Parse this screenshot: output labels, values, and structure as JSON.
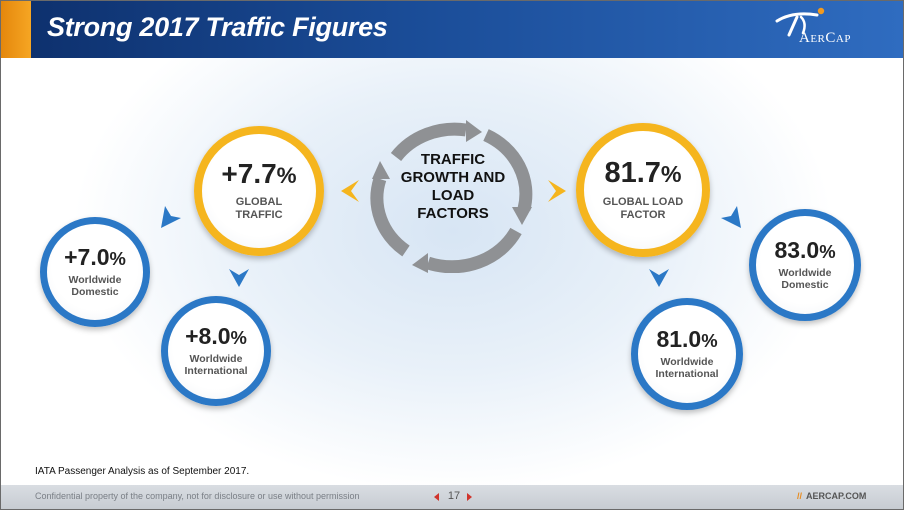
{
  "header": {
    "title": "Strong 2017 Traffic Figures",
    "logo_text": "AerCap",
    "brand_color": "#1a4c97",
    "accent_color": "#f6a623"
  },
  "center": {
    "icon": "cycle-arrows-icon",
    "label": "TRAFFIC GROWTH AND LOAD FACTORS"
  },
  "traffic": {
    "global": {
      "value": "+7.7",
      "unit": "%",
      "label": "GLOBAL TRAFFIC"
    },
    "domestic": {
      "value": "+7.0",
      "unit": "%",
      "label": "Worldwide Domestic"
    },
    "international": {
      "value": "+8.0",
      "unit": "%",
      "label": "Worldwide International"
    }
  },
  "load_factor": {
    "global": {
      "value": "81.7",
      "unit": "%",
      "label": "GLOBAL LOAD FACTOR"
    },
    "domestic": {
      "value": "83.0",
      "unit": "%",
      "label": "Worldwide Domestic"
    },
    "international": {
      "value": "81.0",
      "unit": "%",
      "label": "Worldwide International"
    }
  },
  "footnote": "IATA Passenger Analysis as of September 2017.",
  "footer": {
    "confidential": "Confidential property of the company, not for disclosure or use without permission",
    "page_number": "17",
    "website": "AERCAP.COM",
    "slash": "//"
  }
}
